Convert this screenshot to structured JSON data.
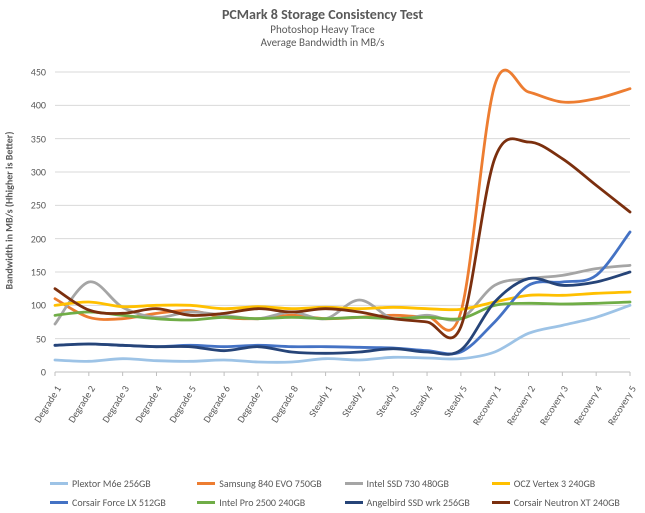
{
  "chart": {
    "type": "line",
    "title": "PCMark 8 Storage Consistency Test",
    "subtitle1": "Photoshop Heavy Trace",
    "subtitle2": "Average Bandwidth in MB/s",
    "title_fontsize": 14,
    "subtitle_fontsize": 11,
    "title_color": "#595959",
    "y_axis_label": "Bandwidth in MB/s (Hhigher is Better)",
    "y_axis_label_fontsize": 10,
    "background_color": "#ffffff",
    "grid_color": "#d9d9d9",
    "axis_color": "#bfbfbf",
    "xlim_count": 18,
    "ylim": [
      0,
      450
    ],
    "ytick_step": 50,
    "line_width": 2.8,
    "categories": [
      "Degrade 1",
      "Degrade 2",
      "Degrade 3",
      "Degrade 4",
      "Degrade 5",
      "Degrade 6",
      "Degrade 7",
      "Degrade 8",
      "Steady 1",
      "Steady 2",
      "Steady 3",
      "Steady 4",
      "Steady 5",
      "Recovery 1",
      "Recovery 2",
      "Recovery 3",
      "Recovery 4",
      "Recovery 5"
    ],
    "series": [
      {
        "name": "Plextor M6e 256GB",
        "color": "#9dc3e6",
        "values": [
          18,
          16,
          20,
          17,
          16,
          18,
          15,
          15,
          20,
          18,
          22,
          21,
          20,
          30,
          58,
          70,
          82,
          100
        ]
      },
      {
        "name": "Samsung 840 EVO 750GB",
        "color": "#ed7d31",
        "values": [
          110,
          82,
          80,
          88,
          92,
          82,
          80,
          85,
          80,
          82,
          85,
          83,
          90,
          430,
          420,
          405,
          410,
          425
        ]
      },
      {
        "name": "Intel SSD 730 480GB",
        "color": "#a5a5a5",
        "values": [
          72,
          135,
          97,
          82,
          90,
          85,
          80,
          90,
          80,
          108,
          80,
          85,
          80,
          130,
          140,
          145,
          155,
          160
        ]
      },
      {
        "name": "OCZ Vertex 3 240GB",
        "color": "#ffc000",
        "values": [
          100,
          105,
          98,
          100,
          100,
          95,
          98,
          95,
          97,
          95,
          97,
          95,
          94,
          105,
          115,
          115,
          118,
          120
        ]
      },
      {
        "name": "Corsair Force LX 512GB",
        "color": "#4472c4",
        "values": [
          40,
          42,
          40,
          38,
          40,
          38,
          40,
          38,
          38,
          37,
          36,
          32,
          30,
          75,
          130,
          135,
          145,
          210
        ]
      },
      {
        "name": "Intel Pro 2500 240GB",
        "color": "#70ad47",
        "values": [
          85,
          90,
          85,
          80,
          78,
          82,
          80,
          82,
          80,
          82,
          80,
          82,
          80,
          100,
          103,
          102,
          103,
          105
        ]
      },
      {
        "name": "Angelbird SSD wrk 256GB",
        "color": "#264478",
        "values": [
          40,
          42,
          40,
          38,
          38,
          32,
          38,
          30,
          28,
          30,
          35,
          30,
          33,
          105,
          140,
          130,
          135,
          150
        ]
      },
      {
        "name": "Corsair Neutron XT 240GB",
        "color": "#7b2f0e",
        "values": [
          125,
          93,
          88,
          95,
          85,
          88,
          95,
          90,
          95,
          90,
          80,
          75,
          68,
          320,
          345,
          320,
          280,
          240
        ]
      }
    ]
  }
}
